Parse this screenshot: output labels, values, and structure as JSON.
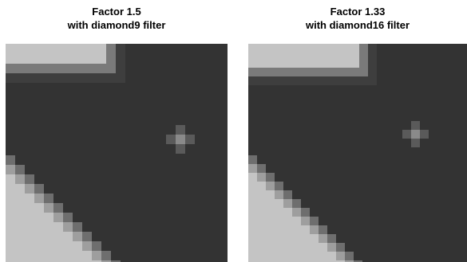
{
  "panels": [
    {
      "title": [
        "Factor 1.5",
        "with diamond9 filter"
      ]
    },
    {
      "title": [
        "Factor 1.33",
        "with diamond16 filter"
      ]
    }
  ]
}
